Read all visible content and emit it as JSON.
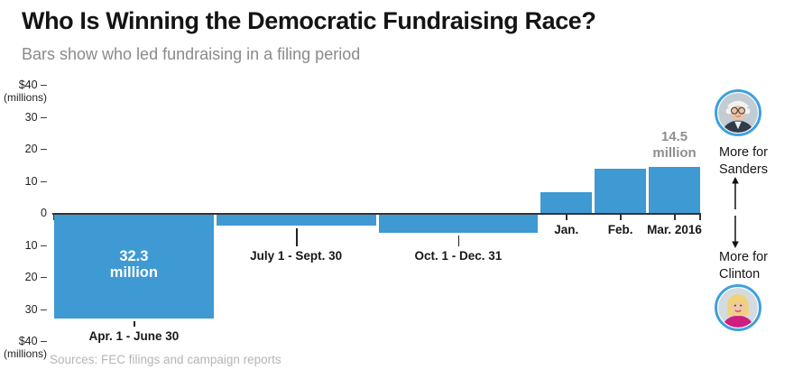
{
  "header": {
    "title": "Who Is Winning the Democratic Fundraising Race?",
    "subtitle": "Bars show who led fundraising in a filing period"
  },
  "legend": {
    "sanders": {
      "line1": "More for",
      "line2": "Sanders"
    },
    "clinton": {
      "line1": "More for",
      "line2": "Clinton"
    }
  },
  "footer": {
    "source": "Sources: FEC filings and campaign reports"
  },
  "colors": {
    "bar": "#3f99d3",
    "axis": "#333333",
    "value_label_above": "#8f8f8f",
    "avatar_ring": "#3fa0de",
    "subtitle": "#8a8a8a",
    "source": "#b5b5b5"
  },
  "chart_data": {
    "type": "bar",
    "title": "Who Is Winning the Democratic Fundraising Race?",
    "subtitle": "Bars show who led fundraising in a filing period",
    "unit": "millions of dollars",
    "ylim": [
      -40,
      40
    ],
    "grid": false,
    "positive_direction": "More for Sanders",
    "negative_direction": "More for Clinton",
    "bar_color": "#3f99d3",
    "y_ticks": [
      {
        "text": "$40 –",
        "sub": "(millions)",
        "value": 40
      },
      {
        "text": "30 –",
        "value": 30
      },
      {
        "text": "20 –",
        "value": 20
      },
      {
        "text": "10 –",
        "value": 10
      },
      {
        "text": "0",
        "value": 0
      },
      {
        "text": "10 –",
        "value": -10
      },
      {
        "text": "20 –",
        "value": -20
      },
      {
        "text": "30 –",
        "value": -30
      },
      {
        "text": "$40 –",
        "sub": "(millions)",
        "value": -40
      }
    ],
    "categories": [
      "Apr. 1 - June 30",
      "July 1 - Sept. 30",
      "Oct. 1 - Dec. 31",
      "Jan.",
      "Feb.",
      "Mar. 2016"
    ],
    "values": [
      -32.3,
      -3.4,
      -5.7,
      6.5,
      13.7,
      14.5
    ],
    "periods": [
      {
        "label": "Apr. 1 - June 30",
        "months": 3,
        "value": -32.3,
        "leader": "Clinton",
        "value_label_lines": [
          "32.3",
          "million"
        ],
        "value_label_placement": "inside"
      },
      {
        "label": "July 1 - Sept. 30",
        "months": 3,
        "value": -3.4,
        "leader": "Clinton"
      },
      {
        "label": "Oct. 1 - Dec. 31",
        "months": 3,
        "value": -5.7,
        "leader": "Clinton"
      },
      {
        "label": "Jan.",
        "months": 1,
        "value": 6.5,
        "leader": "Sanders"
      },
      {
        "label": "Feb.",
        "months": 1,
        "value": 13.7,
        "leader": "Sanders"
      },
      {
        "label": "Mar. 2016",
        "months": 1,
        "value": 14.5,
        "leader": "Sanders",
        "value_label_lines": [
          "14.5",
          "million"
        ],
        "value_label_placement": "above"
      }
    ]
  }
}
